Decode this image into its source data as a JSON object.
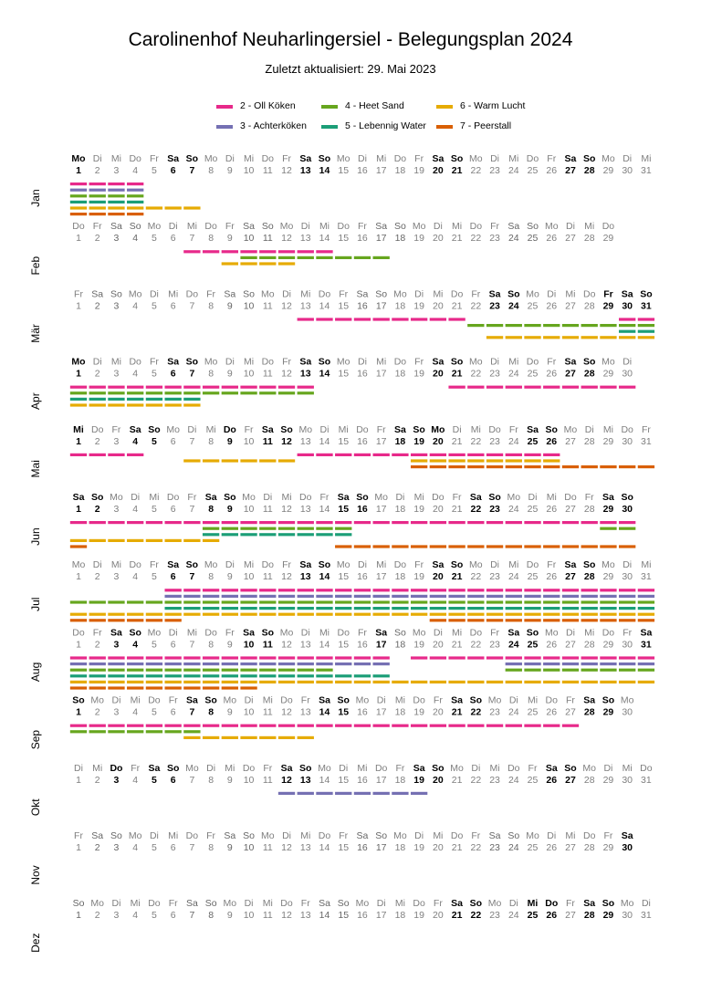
{
  "title": "Carolinenhof Neuharlingersiel - Belegungsplan 2024",
  "subtitle": "Zuletzt aktualisiert: 29. Mai 2023",
  "legend": [
    {
      "label": "2 - Oll Köken",
      "color": "#e7298a"
    },
    {
      "label": "4 - Heet Sand",
      "color": "#66a61e"
    },
    {
      "label": "6 - Warm Lucht",
      "color": "#e6ab02"
    },
    {
      "label": "3 - Achterköken",
      "color": "#7570b3"
    },
    {
      "label": "5 - Lebennig Water",
      "color": "#1b9e77"
    },
    {
      "label": "7 - Peerstall",
      "color": "#d95f02"
    }
  ],
  "chart_data": {
    "type": "calendar-occupancy",
    "year": 2024,
    "weekday_abbr": [
      "Mo",
      "Di",
      "Mi",
      "Do",
      "Fr",
      "Sa",
      "So"
    ],
    "months": [
      {
        "name": "Jan",
        "days": 31,
        "start_weekday": 0,
        "bold_days": [
          1,
          6,
          7,
          13,
          14,
          20,
          21,
          27,
          28
        ],
        "rows": [
          {
            "unit": "2 - Oll Köken",
            "spans": [
              [
                1,
                4
              ]
            ]
          },
          {
            "unit": "3 - Achterköken",
            "spans": [
              [
                1,
                4
              ]
            ]
          },
          {
            "unit": "4 - Heet Sand",
            "spans": [
              [
                1,
                4
              ]
            ]
          },
          {
            "unit": "5 - Lebennig Water",
            "spans": [
              [
                1,
                4
              ]
            ]
          },
          {
            "unit": "6 - Warm Lucht",
            "spans": [
              [
                1,
                7
              ]
            ]
          },
          {
            "unit": "7 - Peerstall",
            "spans": [
              [
                1,
                4
              ]
            ]
          }
        ]
      },
      {
        "name": "Feb",
        "days": 29,
        "start_weekday": 3,
        "bold_days": [],
        "rows": [
          {
            "unit": "2 - Oll Köken",
            "spans": [
              [
                7,
                14
              ]
            ]
          },
          {
            "unit": "4 - Heet Sand",
            "spans": [
              [
                10,
                17
              ]
            ]
          },
          {
            "unit": "6 - Warm Lucht",
            "spans": [
              [
                9,
                12
              ]
            ]
          }
        ]
      },
      {
        "name": "Mär",
        "days": 31,
        "start_weekday": 4,
        "bold_days": [
          23,
          24,
          29,
          30,
          31
        ],
        "rows": [
          {
            "unit": "2 - Oll Köken",
            "spans": [
              [
                13,
                21
              ],
              [
                30,
                31
              ]
            ]
          },
          {
            "unit": "4 - Heet Sand",
            "spans": [
              [
                22,
                31
              ]
            ]
          },
          {
            "unit": "5 - Lebennig Water",
            "spans": [
              [
                30,
                31
              ]
            ]
          },
          {
            "unit": "6 - Warm Lucht",
            "spans": [
              [
                23,
                31
              ]
            ]
          }
        ]
      },
      {
        "name": "Apr",
        "days": 30,
        "start_weekday": 0,
        "bold_days": [
          1,
          6,
          7,
          13,
          14,
          20,
          21,
          27,
          28
        ],
        "rows": [
          {
            "unit": "2 - Oll Köken",
            "spans": [
              [
                1,
                13
              ],
              [
                21,
                30
              ]
            ]
          },
          {
            "unit": "4 - Heet Sand",
            "spans": [
              [
                1,
                13
              ]
            ]
          },
          {
            "unit": "5 - Lebennig Water",
            "spans": [
              [
                1,
                7
              ]
            ]
          },
          {
            "unit": "6 - Warm Lucht",
            "spans": [
              [
                1,
                7
              ]
            ]
          }
        ]
      },
      {
        "name": "Mai",
        "days": 31,
        "start_weekday": 2,
        "bold_days": [
          1,
          4,
          5,
          9,
          11,
          12,
          18,
          19,
          20,
          25,
          26
        ],
        "rows": [
          {
            "unit": "2 - Oll Köken",
            "spans": [
              [
                1,
                4
              ],
              [
                13,
                26
              ]
            ]
          },
          {
            "unit": "6 - Warm Lucht",
            "spans": [
              [
                7,
                12
              ],
              [
                19,
                26
              ]
            ]
          },
          {
            "unit": "7 - Peerstall",
            "spans": [
              [
                19,
                31
              ]
            ]
          }
        ]
      },
      {
        "name": "Jun",
        "days": 30,
        "start_weekday": 5,
        "bold_days": [
          1,
          2,
          8,
          9,
          15,
          16,
          22,
          23,
          29,
          30
        ],
        "rows": [
          {
            "unit": "2 - Oll Köken",
            "spans": [
              [
                1,
                14
              ],
              [
                15,
                30
              ]
            ]
          },
          {
            "unit": "4 - Heet Sand",
            "spans": [
              [
                8,
                15
              ],
              [
                29,
                30
              ]
            ]
          },
          {
            "unit": "5 - Lebennig Water",
            "spans": [
              [
                8,
                15
              ]
            ]
          },
          {
            "unit": "6 - Warm Lucht",
            "spans": [
              [
                1,
                8
              ]
            ]
          },
          {
            "unit": "7 - Peerstall",
            "spans": [
              [
                1,
                1
              ],
              [
                15,
                30
              ]
            ]
          }
        ]
      },
      {
        "name": "Jul",
        "days": 31,
        "start_weekday": 0,
        "bold_days": [
          6,
          7,
          13,
          14,
          20,
          21,
          27,
          28
        ],
        "rows": [
          {
            "unit": "2 - Oll Köken",
            "spans": [
              [
                6,
                31
              ]
            ]
          },
          {
            "unit": "3 - Achterköken",
            "spans": [
              [
                6,
                31
              ]
            ]
          },
          {
            "unit": "4 - Heet Sand",
            "spans": [
              [
                1,
                31
              ]
            ]
          },
          {
            "unit": "5 - Lebennig Water",
            "spans": [
              [
                6,
                31
              ]
            ]
          },
          {
            "unit": "6 - Warm Lucht",
            "spans": [
              [
                1,
                31
              ]
            ]
          },
          {
            "unit": "7 - Peerstall",
            "spans": [
              [
                1,
                6
              ],
              [
                20,
                31
              ]
            ]
          }
        ]
      },
      {
        "name": "Aug",
        "days": 31,
        "start_weekday": 3,
        "bold_days": [
          3,
          4,
          10,
          11,
          17,
          24,
          25,
          31
        ],
        "rows": [
          {
            "unit": "2 - Oll Köken",
            "spans": [
              [
                1,
                17
              ],
              [
                19,
                31
              ]
            ]
          },
          {
            "unit": "3 - Achterköken",
            "spans": [
              [
                1,
                17
              ],
              [
                24,
                31
              ]
            ]
          },
          {
            "unit": "4 - Heet Sand",
            "spans": [
              [
                1,
                14
              ],
              [
                24,
                31
              ]
            ]
          },
          {
            "unit": "5 - Lebennig Water",
            "spans": [
              [
                1,
                17
              ]
            ]
          },
          {
            "unit": "6 - Warm Lucht",
            "spans": [
              [
                1,
                31
              ]
            ]
          },
          {
            "unit": "7 - Peerstall",
            "spans": [
              [
                1,
                10
              ]
            ]
          }
        ]
      },
      {
        "name": "Sep",
        "days": 30,
        "start_weekday": 6,
        "bold_days": [
          1,
          7,
          8,
          14,
          15,
          21,
          22,
          28,
          29
        ],
        "rows": [
          {
            "unit": "2 - Oll Köken",
            "spans": [
              [
                1,
                27
              ]
            ]
          },
          {
            "unit": "4 - Heet Sand",
            "spans": [
              [
                1,
                7
              ]
            ]
          },
          {
            "unit": "6 - Warm Lucht",
            "spans": [
              [
                7,
                13
              ]
            ]
          }
        ]
      },
      {
        "name": "Okt",
        "days": 31,
        "start_weekday": 1,
        "bold_days": [
          3,
          5,
          6,
          12,
          13,
          19,
          20,
          26,
          27
        ],
        "rows": [
          {
            "unit": "3 - Achterköken",
            "spans": [
              [
                12,
                19
              ]
            ]
          }
        ]
      },
      {
        "name": "Nov",
        "days": 30,
        "start_weekday": 4,
        "bold_days": [
          30
        ],
        "rows": []
      },
      {
        "name": "Dez",
        "days": 31,
        "start_weekday": 6,
        "bold_days": [
          21,
          22,
          25,
          26,
          28,
          29
        ],
        "rows": []
      }
    ]
  }
}
